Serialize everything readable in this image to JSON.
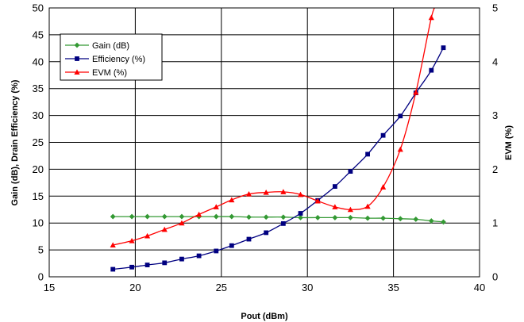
{
  "chart_data": {
    "type": "line",
    "xlabel": "Pout (dBm)",
    "ylabel": "Gain (dB), Drain Efficiency (%)",
    "y2label": "EVM (%)",
    "xlim": [
      15,
      40
    ],
    "ylim": [
      0,
      50
    ],
    "y2lim": [
      0,
      5
    ],
    "xticks": [
      "15",
      "20",
      "25",
      "30",
      "35",
      "40"
    ],
    "yticks": [
      "0",
      "5",
      "10",
      "15",
      "20",
      "25",
      "30",
      "35",
      "40",
      "45",
      "50"
    ],
    "y2ticks": [
      "0",
      "1",
      "2",
      "3",
      "4",
      "5"
    ],
    "grid": true,
    "legend": "top-left",
    "series": [
      {
        "name": "Gain (dB)",
        "axis": "left",
        "color": "#339933",
        "marker": "diamond",
        "x": [
          18.7,
          19.8,
          20.7,
          21.7,
          22.7,
          23.7,
          24.7,
          25.6,
          26.6,
          27.6,
          28.6,
          29.6,
          30.6,
          31.6,
          32.5,
          33.5,
          34.4,
          35.4,
          36.3,
          37.2,
          37.9
        ],
        "y": [
          11.2,
          11.2,
          11.2,
          11.2,
          11.2,
          11.2,
          11.2,
          11.2,
          11.1,
          11.1,
          11.1,
          11.0,
          11.0,
          11.0,
          11.0,
          10.9,
          10.9,
          10.8,
          10.7,
          10.4,
          10.2
        ]
      },
      {
        "name": "Efficiency (%)",
        "axis": "left",
        "color": "#000080",
        "marker": "square",
        "x": [
          18.7,
          19.8,
          20.7,
          21.7,
          22.7,
          23.7,
          24.7,
          25.6,
          26.6,
          27.6,
          28.6,
          29.6,
          30.6,
          31.6,
          32.5,
          33.5,
          34.4,
          35.4,
          36.3,
          37.2,
          37.9
        ],
        "y": [
          1.4,
          1.8,
          2.2,
          2.6,
          3.3,
          3.9,
          4.8,
          5.8,
          7.0,
          8.2,
          9.9,
          11.8,
          14.2,
          16.8,
          19.6,
          22.8,
          26.3,
          29.9,
          34.2,
          38.4,
          42.6
        ]
      },
      {
        "name": "EVM (%)",
        "axis": "right",
        "color": "#ff0000",
        "marker": "triangle",
        "x": [
          18.7,
          19.8,
          20.7,
          21.7,
          22.7,
          23.7,
          24.7,
          25.6,
          26.6,
          27.6,
          28.6,
          29.6,
          30.6,
          31.6,
          32.5,
          33.5,
          34.4,
          35.4,
          36.3,
          37.2
        ],
        "y": [
          0.59,
          0.67,
          0.76,
          0.88,
          1.0,
          1.16,
          1.3,
          1.43,
          1.54,
          1.57,
          1.58,
          1.53,
          1.41,
          1.3,
          1.25,
          1.31,
          1.67,
          2.37,
          3.43,
          4.82
        ],
        "extends_to": [
          37.5,
          5.0
        ]
      }
    ]
  }
}
